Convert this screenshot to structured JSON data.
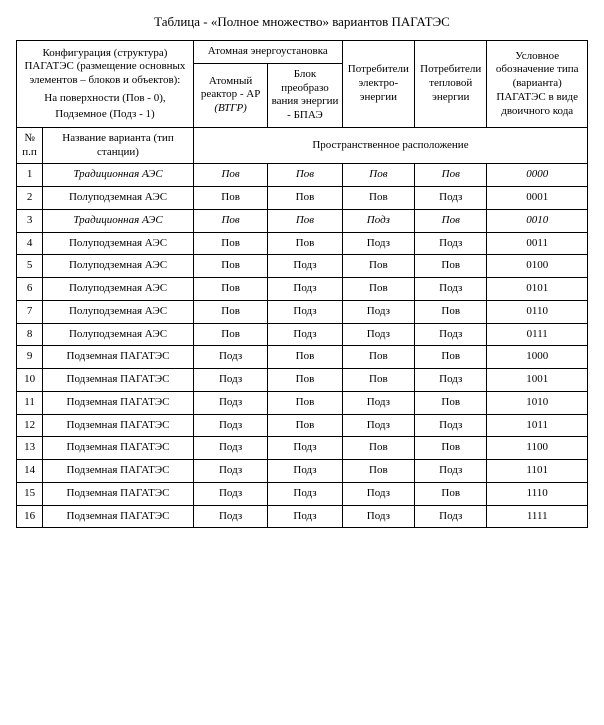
{
  "title": "Таблица - «Полное множество» вариантов ПАГАТЭС",
  "header": {
    "config_title": "Конфигурация (структура) ПАГАТЭС (размещение основных элементов – блоков и объектов):",
    "config_line1": "На поверхности (Пов - 0),",
    "config_line2": "Подземное (Подз - 1)",
    "atomic_group": "Атомная энергоустановка",
    "reactor_l1": "Атомный реактор - АР",
    "reactor_l2": "(ВТГР)",
    "bpae": "Блок преобразо вания энергии - БПАЭ",
    "electro": "Потреби­тели электро­энергии",
    "heat": "Потреби­тели тепловой энергии",
    "code": "Условное обозначение типа (варианта) ПАГАТЭС в виде двоичного кода",
    "num": "№ п.п",
    "name": "Название варианта (тип станции)",
    "spatial": "Пространственное расположение"
  },
  "rows": [
    {
      "n": "1",
      "name": "Традиционная АЭС",
      "italic": true,
      "a": "Пов",
      "b": "Пов",
      "c": "Пов",
      "d": "Пов",
      "code": "0000"
    },
    {
      "n": "2",
      "name": "Полуподземная АЭС",
      "italic": false,
      "a": "Пов",
      "b": "Пов",
      "c": "Пов",
      "d": "Подз",
      "code": "0001"
    },
    {
      "n": "3",
      "name": "Традиционная АЭС",
      "italic": true,
      "a": "Пов",
      "b": "Пов",
      "c": "Подз",
      "d": "Пов",
      "code": "0010"
    },
    {
      "n": "4",
      "name": "Полуподземная АЭС",
      "italic": false,
      "a": "Пов",
      "b": "Пов",
      "c": "Подз",
      "d": "Подз",
      "code": "0011"
    },
    {
      "n": "5",
      "name": "Полуподземная АЭС",
      "italic": false,
      "a": "Пов",
      "b": "Подз",
      "c": "Пов",
      "d": "Пов",
      "code": "0100"
    },
    {
      "n": "6",
      "name": "Полуподземная АЭС",
      "italic": false,
      "a": "Пов",
      "b": "Подз",
      "c": "Пов",
      "d": "Подз",
      "code": "0101"
    },
    {
      "n": "7",
      "name": "Полуподземная АЭС",
      "italic": false,
      "a": "Пов",
      "b": "Подз",
      "c": "Подз",
      "d": "Пов",
      "code": "0110"
    },
    {
      "n": "8",
      "name": "Полуподземная АЭС",
      "italic": false,
      "a": "Пов",
      "b": "Подз",
      "c": "Подз",
      "d": "Подз",
      "code": "0111"
    },
    {
      "n": "9",
      "name": "Подземная ПАГАТЭС",
      "italic": false,
      "a": "Подз",
      "b": "Пов",
      "c": "Пов",
      "d": "Пов",
      "code": "1000"
    },
    {
      "n": "10",
      "name": "Подземная ПАГАТЭС",
      "italic": false,
      "a": "Подз",
      "b": "Пов",
      "c": "Пов",
      "d": "Подз",
      "code": "1001"
    },
    {
      "n": "11",
      "name": "Подземная ПАГАТЭС",
      "italic": false,
      "a": "Подз",
      "b": "Пов",
      "c": "Подз",
      "d": "Пов",
      "code": "1010"
    },
    {
      "n": "12",
      "name": "Подземная ПАГАТЭС",
      "italic": false,
      "a": "Подз",
      "b": "Пов",
      "c": "Подз",
      "d": "Подз",
      "code": "1011"
    },
    {
      "n": "13",
      "name": "Подземная ПАГАТЭС",
      "italic": false,
      "a": "Подз",
      "b": "Подз",
      "c": "Пов",
      "d": "Пов",
      "code": "1100"
    },
    {
      "n": "14",
      "name": "Подземная ПАГАТЭС",
      "italic": false,
      "a": "Подз",
      "b": "Подз",
      "c": "Пов",
      "d": "Подз",
      "code": "1101"
    },
    {
      "n": "15",
      "name": "Подземная ПАГАТЭС",
      "italic": false,
      "a": "Подз",
      "b": "Подз",
      "c": "Подз",
      "d": "Пов",
      "code": "1110"
    },
    {
      "n": "16",
      "name": "Подземная ПАГАТЭС",
      "italic": false,
      "a": "Подз",
      "b": "Подз",
      "c": "Подз",
      "d": "Подз",
      "code": "1111"
    }
  ]
}
